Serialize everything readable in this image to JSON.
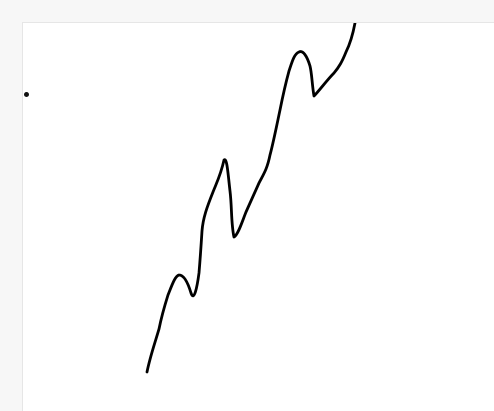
{
  "canvas": {
    "background": "#ffffff",
    "stroke_color": "#000000",
    "icon": "freehand-stroke"
  },
  "cursor": {
    "icon": "cursor-dot"
  }
}
